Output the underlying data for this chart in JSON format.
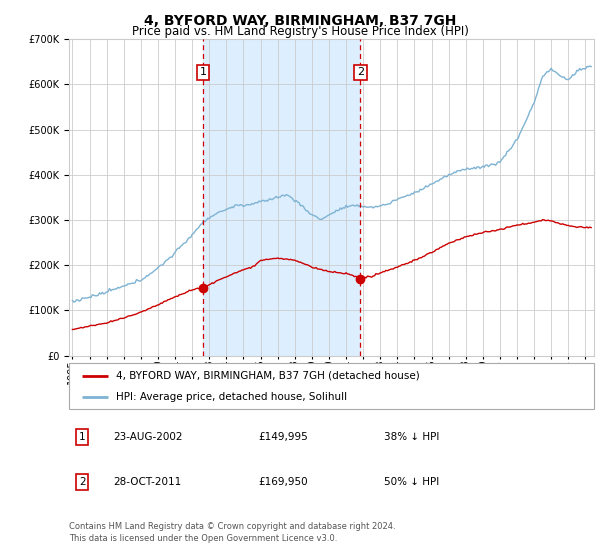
{
  "title": "4, BYFORD WAY, BIRMINGHAM, B37 7GH",
  "subtitle": "Price paid vs. HM Land Registry's House Price Index (HPI)",
  "legend_line1": "4, BYFORD WAY, BIRMINGHAM, B37 7GH (detached house)",
  "legend_line2": "HPI: Average price, detached house, Solihull",
  "footer1": "Contains HM Land Registry data © Crown copyright and database right 2024.",
  "footer2": "This data is licensed under the Open Government Licence v3.0.",
  "annotation1_date": "23-AUG-2002",
  "annotation1_price": "£149,995",
  "annotation1_hpi": "38% ↓ HPI",
  "annotation2_date": "28-OCT-2011",
  "annotation2_price": "£169,950",
  "annotation2_hpi": "50% ↓ HPI",
  "vline1_year": 2002.64,
  "vline2_year": 2011.83,
  "sale1_price": 149995,
  "sale2_price": 169950,
  "ylim": [
    0,
    700000
  ],
  "xlim_start": 1994.8,
  "xlim_end": 2025.5,
  "red_color": "#cc0000",
  "blue_color": "#7fb3d3",
  "shade_color": "#ddeeff",
  "grid_color": "#cccccc",
  "title_fontsize": 10,
  "subtitle_fontsize": 8.5,
  "tick_fontsize": 7,
  "legend_fontsize": 7.5,
  "annot_fontsize": 7.5,
  "footer_fontsize": 6
}
